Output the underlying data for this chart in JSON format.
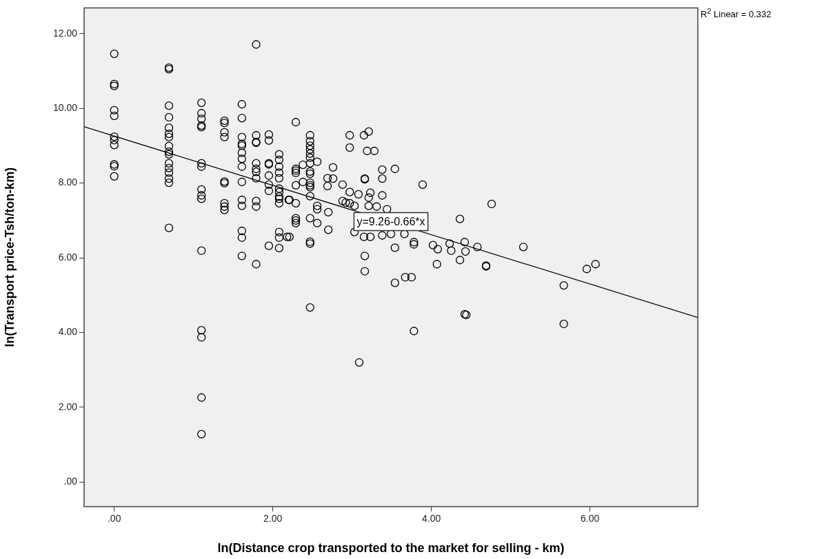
{
  "chart_data": {
    "type": "scatter",
    "xlabel": "ln(Distance crop transported to the market for selling - km)",
    "ylabel": "ln(Transport price-Tsh/ton-km)",
    "xlim": [
      -0.38,
      7.36
    ],
    "ylim": [
      -0.66,
      12.69
    ],
    "xticks": [
      {
        "value": 0,
        "label": ".00"
      },
      {
        "value": 2,
        "label": "2.00"
      },
      {
        "value": 4,
        "label": "4.00"
      },
      {
        "value": 6,
        "label": "6.00"
      }
    ],
    "yticks": [
      {
        "value": 0,
        "label": ".00"
      },
      {
        "value": 2,
        "label": "2.00"
      },
      {
        "value": 4,
        "label": "4.00"
      },
      {
        "value": 6,
        "label": "6.00"
      },
      {
        "value": 8,
        "label": "8.00"
      },
      {
        "value": 10,
        "label": "10.00"
      },
      {
        "value": 12,
        "label": "12.00"
      }
    ],
    "grid": false,
    "legend": false,
    "marker": "circle",
    "series": [
      {
        "color": "#000000",
        "x": [
          0,
          0,
          0,
          0,
          0,
          0,
          0,
          0,
          0,
          0,
          0,
          0.69,
          0.69,
          0.69,
          0.69,
          0.69,
          0.69,
          0.69,
          0.69,
          0.69,
          0.69,
          0.69,
          0.69,
          0.69,
          0.69,
          0.69,
          0.69,
          1.1,
          1.1,
          1.1,
          1.1,
          1.1,
          1.1,
          1.1,
          1.1,
          1.1,
          1.1,
          1.1,
          1.1,
          1.1,
          1.1,
          1.1,
          1.39,
          1.39,
          1.39,
          1.39,
          1.39,
          1.39,
          1.39,
          1.39,
          1.39,
          1.61,
          1.61,
          1.61,
          1.61,
          1.61,
          1.61,
          1.61,
          1.61,
          1.61,
          1.61,
          1.61,
          1.61,
          1.61,
          1.61,
          1.79,
          1.79,
          1.79,
          1.79,
          1.79,
          1.79,
          1.79,
          1.79,
          1.79,
          1.79,
          1.79,
          1.95,
          1.95,
          1.95,
          1.95,
          1.95,
          1.95,
          1.95,
          1.95,
          2.08,
          2.08,
          2.08,
          2.08,
          2.08,
          2.08,
          2.08,
          2.08,
          2.08,
          2.08,
          2.08,
          2.08,
          2.08,
          2.2,
          2.18,
          2.21,
          2.21,
          2.29,
          2.29,
          2.29,
          2.29,
          2.29,
          2.29,
          2.29,
          2.29,
          2.29,
          2.38,
          2.38,
          2.47,
          2.47,
          2.47,
          2.47,
          2.47,
          2.47,
          2.47,
          2.47,
          2.47,
          2.47,
          2.47,
          2.47,
          2.47,
          2.47,
          2.47,
          2.47,
          2.47,
          2.56,
          2.56,
          2.56,
          2.56,
          2.69,
          2.69,
          2.7,
          2.7,
          2.76,
          2.76,
          2.88,
          2.88,
          2.92,
          2.97,
          3.03,
          2.97,
          2.97,
          2.97,
          3.08,
          3.03,
          3.15,
          3.21,
          3.19,
          3.28,
          3.16,
          3.16,
          3.38,
          3.38,
          3.54,
          3.23,
          3.21,
          3.21,
          3.31,
          3.38,
          3.44,
          3.15,
          3.23,
          3.38,
          3.49,
          3.66,
          3.16,
          3.16,
          3.54,
          3.54,
          3.67,
          3.75,
          3.78,
          3.78,
          3.78,
          3.89,
          4.02,
          4.08,
          4.07,
          4.23,
          4.25,
          4.36,
          4.42,
          4.43,
          4.36,
          4.58,
          4.69,
          4.69,
          4.76,
          4.42,
          5.16,
          5.96,
          6.07,
          5.67,
          5.67,
          3.09,
          4.44
        ],
        "values": [
          11.46,
          10.65,
          10.6,
          9.95,
          9.8,
          9.24,
          9.15,
          9.02,
          8.5,
          8.45,
          8.18,
          11.09,
          11.05,
          10.07,
          9.76,
          9.48,
          9.32,
          9.23,
          8.99,
          8.84,
          8.77,
          8.53,
          8.4,
          8.28,
          8.12,
          8.01,
          6.8,
          10.15,
          9.87,
          9.72,
          9.54,
          9.5,
          8.53,
          8.44,
          7.83,
          7.67,
          7.58,
          6.19,
          4.06,
          3.87,
          2.26,
          1.28,
          9.67,
          9.61,
          9.36,
          9.23,
          8.04,
          8.0,
          7.46,
          7.37,
          7.28,
          10.11,
          9.74,
          9.23,
          9.05,
          9.0,
          8.81,
          8.65,
          8.44,
          8.03,
          7.55,
          7.39,
          6.72,
          6.54,
          6.05,
          11.71,
          9.28,
          9.1,
          9.08,
          8.53,
          8.38,
          8.3,
          8.13,
          7.52,
          7.37,
          5.83,
          9.3,
          9.14,
          8.53,
          8.5,
          8.2,
          7.96,
          7.79,
          6.32,
          8.77,
          8.62,
          8.44,
          8.28,
          8.13,
          7.85,
          7.76,
          7.64,
          7.58,
          7.46,
          6.69,
          6.54,
          6.26,
          7.55,
          6.56,
          7.55,
          6.56,
          9.63,
          8.38,
          8.33,
          8.27,
          7.94,
          7.46,
          7.06,
          7.0,
          6.93,
          8.49,
          8.03,
          9.28,
          9.12,
          9.0,
          8.9,
          8.79,
          8.68,
          8.53,
          8.31,
          8.25,
          8.01,
          7.94,
          7.89,
          7.65,
          7.06,
          6.43,
          6.38,
          4.67,
          8.57,
          7.39,
          7.3,
          6.93,
          8.13,
          7.92,
          7.22,
          6.75,
          8.42,
          8.12,
          7.96,
          7.52,
          7.48,
          7.46,
          7.39,
          7.76,
          9.28,
          8.95,
          7.7,
          6.69,
          9.28,
          9.38,
          8.86,
          8.86,
          8.12,
          8.1,
          8.36,
          8.12,
          8.38,
          7.74,
          7.61,
          7.39,
          7.37,
          7.67,
          7.3,
          6.56,
          6.56,
          6.6,
          6.64,
          6.64,
          6.05,
          5.64,
          6.27,
          5.33,
          5.48,
          5.48,
          6.42,
          6.36,
          4.04,
          7.96,
          6.34,
          6.23,
          5.83,
          6.38,
          6.19,
          7.04,
          6.42,
          6.17,
          5.94,
          6.29,
          5.79,
          5.77,
          7.44,
          4.49,
          6.29,
          5.7,
          5.83,
          5.26,
          4.23,
          3.2,
          4.47
        ]
      },
      {
        "type": "line",
        "color": "#000000",
        "marker": "none",
        "line_style": "solid",
        "x": [
          -0.38,
          7.36
        ],
        "values": [
          9.51,
          4.4
        ]
      }
    ],
    "annotations": [
      {
        "text": "y=9.26-0.66*x",
        "x": 3.49,
        "y": 6.97
      },
      "R$^{2}$ Linear = 0.332"
    ]
  }
}
